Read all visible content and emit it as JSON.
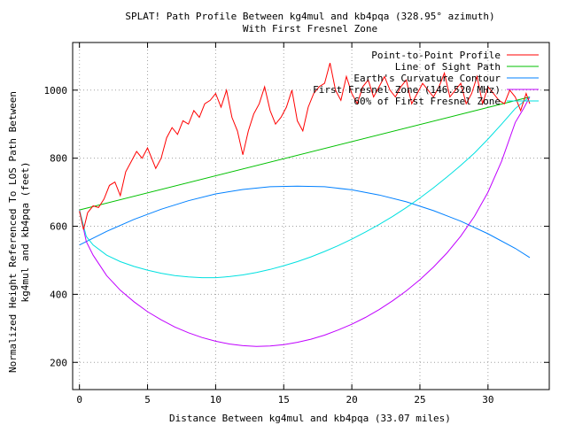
{
  "chart_data": {
    "type": "line",
    "title": "SPLAT! Path Profile Between kg4mul and kb4pqa (328.95° azimuth)",
    "subtitle": "With First Fresnel Zone",
    "xlabel": "Distance Between kg4mul and kb4pqa (33.07 miles)",
    "ylabel_line1": "Normalized Height Referenced To LOS Path Between",
    "ylabel_line2": "kg4mul and kb4pqa (feet)",
    "xlim": [
      -0.5,
      34.5
    ],
    "ylim": [
      120,
      1140
    ],
    "x_ticks": [
      0,
      5,
      10,
      15,
      20,
      25,
      30
    ],
    "y_ticks": [
      200,
      400,
      600,
      800,
      1000
    ],
    "grid": true,
    "legend_position": "top-right",
    "series": [
      {
        "name": "Point-to-Point Profile",
        "color": "#ff0000",
        "x": [
          0,
          0.3,
          0.6,
          1.0,
          1.4,
          1.8,
          2.2,
          2.6,
          3.0,
          3.4,
          3.8,
          4.2,
          4.6,
          5.0,
          5.3,
          5.6,
          6.0,
          6.4,
          6.8,
          7.2,
          7.6,
          8.0,
          8.4,
          8.8,
          9.2,
          9.6,
          10.0,
          10.4,
          10.8,
          11.2,
          11.6,
          12.0,
          12.4,
          12.8,
          13.2,
          13.6,
          14.0,
          14.4,
          14.8,
          15.2,
          15.6,
          16.0,
          16.4,
          16.8,
          17.2,
          17.6,
          18.0,
          18.4,
          18.8,
          19.2,
          19.6,
          20.0,
          20.4,
          20.8,
          21.2,
          21.6,
          22.0,
          22.4,
          22.8,
          23.2,
          23.6,
          24.0,
          24.4,
          24.8,
          25.2,
          25.6,
          26.0,
          26.4,
          26.8,
          27.2,
          27.6,
          28.0,
          28.4,
          28.8,
          29.2,
          29.6,
          30.0,
          30.4,
          30.8,
          31.2,
          31.6,
          32.0,
          32.4,
          32.8,
          33.07
        ],
        "values": [
          645,
          590,
          640,
          660,
          655,
          680,
          720,
          730,
          690,
          760,
          790,
          820,
          800,
          830,
          800,
          770,
          800,
          860,
          890,
          870,
          910,
          900,
          940,
          920,
          960,
          970,
          990,
          950,
          1000,
          920,
          880,
          810,
          880,
          930,
          960,
          1010,
          940,
          900,
          920,
          950,
          1000,
          910,
          880,
          950,
          990,
          1010,
          1020,
          1080,
          1000,
          970,
          1040,
          990,
          960,
          1010,
          1030,
          980,
          1010,
          1040,
          1000,
          980,
          1010,
          1030,
          960,
          990,
          1020,
          1000,
          980,
          1010,
          1050,
          980,
          1000,
          1020,
          960,
          990,
          1040,
          960,
          1010,
          990,
          970,
          960,
          1000,
          980,
          940,
          990,
          960
        ]
      },
      {
        "name": "Line of Sight Path",
        "color": "#00c000",
        "x": [
          0,
          33.07
        ],
        "values": [
          648,
          980
        ]
      },
      {
        "name": "Earth's Curvature Contour",
        "color": "#0080ff",
        "x": [
          0,
          2,
          4,
          6,
          8,
          10,
          12,
          14,
          16,
          18,
          20,
          22,
          24,
          26,
          28,
          30,
          32,
          33.07
        ],
        "values": [
          545,
          585,
          620,
          650,
          675,
          695,
          708,
          716,
          718,
          716,
          707,
          692,
          672,
          646,
          615,
          578,
          535,
          508
        ]
      },
      {
        "name": "First Fresnel Zone (146.520 MHz)",
        "color": "#c000ff",
        "x": [
          0,
          0.5,
          1,
          2,
          3,
          4,
          5,
          6,
          7,
          8,
          9,
          10,
          11,
          12,
          13,
          14,
          15,
          16,
          17,
          18,
          19,
          20,
          21,
          22,
          23,
          24,
          25,
          26,
          27,
          28,
          29,
          30,
          31,
          32,
          32.6,
          33.07
        ],
        "values": [
          648,
          555,
          515,
          455,
          412,
          378,
          349,
          325,
          304,
          287,
          273,
          262,
          254,
          249,
          247,
          248,
          252,
          259,
          268,
          280,
          295,
          312,
          332,
          355,
          381,
          410,
          443,
          480,
          522,
          571,
          629,
          700,
          791,
          905,
          945,
          980
        ]
      },
      {
        "name": "60% of First Fresnel Zone",
        "color": "#00e0e0",
        "x": [
          0,
          0.5,
          1,
          2,
          3,
          4,
          5,
          6,
          7,
          8,
          9,
          10,
          11,
          12,
          13,
          14,
          15,
          16,
          17,
          18,
          19,
          20,
          21,
          22,
          23,
          24,
          25,
          26,
          27,
          28,
          29,
          30,
          31,
          32,
          32.6,
          33.07
        ],
        "values": [
          648,
          570,
          545,
          515,
          496,
          482,
          471,
          462,
          455,
          451,
          449,
          449,
          452,
          457,
          464,
          473,
          484,
          496,
          510,
          526,
          543,
          562,
          583,
          605,
          629,
          655,
          683,
          713,
          745,
          779,
          815,
          856,
          900,
          946,
          966,
          980
        ]
      }
    ]
  }
}
